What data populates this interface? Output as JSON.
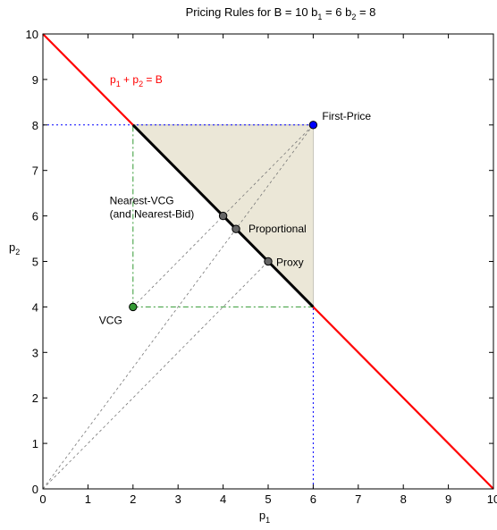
{
  "chart_data": {
    "type": "scatter",
    "title": {
      "main": "Pricing Rules for B = 10  b",
      "sub1": "1",
      "mid": " = 6 b",
      "sub2": "2",
      "end": " = 8"
    },
    "xlabel": {
      "base": "p",
      "sub": "1"
    },
    "ylabel": {
      "base": "p",
      "sub": "2"
    },
    "xlim": [
      0,
      10
    ],
    "ylim": [
      0,
      10
    ],
    "x_ticks": [
      0,
      1,
      2,
      3,
      4,
      5,
      6,
      7,
      8,
      9,
      10
    ],
    "y_ticks": [
      0,
      1,
      2,
      3,
      4,
      5,
      6,
      7,
      8,
      9,
      10
    ],
    "x_tick_labels": [
      "0",
      "1",
      "2",
      "3",
      "4",
      "5",
      "6",
      "7",
      "8",
      "9",
      "10"
    ],
    "y_tick_labels": [
      "0",
      "1",
      "2",
      "3",
      "4",
      "5",
      "6",
      "7",
      "8",
      "9",
      "10"
    ],
    "grid": false,
    "budget_line": {
      "from": [
        0,
        10
      ],
      "to": [
        10,
        0
      ],
      "color": "#ff0000"
    },
    "budget_label": {
      "part1": "p",
      "sub1": "1",
      "part2": " + p",
      "sub2": "2",
      "part3": " = B",
      "color": "#ff0000"
    },
    "core_region": {
      "vertices": [
        [
          2,
          8
        ],
        [
          6,
          8
        ],
        [
          6,
          4
        ]
      ],
      "fill": "#ebe7d7"
    },
    "core_boundary": {
      "from": [
        2,
        8
      ],
      "to": [
        6,
        4
      ],
      "color": "#000000"
    },
    "bids_dotted": [
      [
        [
          0,
          8
        ],
        [
          6,
          8
        ]
      ],
      [
        [
          6,
          0
        ],
        [
          6,
          4
        ]
      ]
    ],
    "vcg_dashdot": [
      [
        [
          2,
          4
        ],
        [
          2,
          8
        ]
      ],
      [
        [
          2,
          4
        ],
        [
          6,
          4
        ]
      ]
    ],
    "gray_dashed": [
      [
        [
          0,
          0
        ],
        [
          6,
          8
        ]
      ],
      [
        [
          2,
          4
        ],
        [
          6,
          8
        ]
      ],
      [
        [
          0,
          0
        ],
        [
          5,
          5
        ]
      ]
    ],
    "points": [
      {
        "name": "First-Price",
        "x": 6,
        "y": 8,
        "color": "#0000ff",
        "label": "First-Price"
      },
      {
        "name": "VCG",
        "x": 2,
        "y": 4,
        "color": "#339933",
        "label": "VCG"
      },
      {
        "name": "Nearest-VCG",
        "x": 4,
        "y": 6,
        "color": "#666666",
        "label_lines": [
          "Nearest-VCG",
          "(and Nearest-Bid)"
        ]
      },
      {
        "name": "Proportional",
        "x": 4.2857,
        "y": 5.7143,
        "color": "#666666",
        "label": "Proportional"
      },
      {
        "name": "Proxy",
        "x": 5,
        "y": 5,
        "color": "#666666",
        "label": "Proxy"
      }
    ]
  }
}
